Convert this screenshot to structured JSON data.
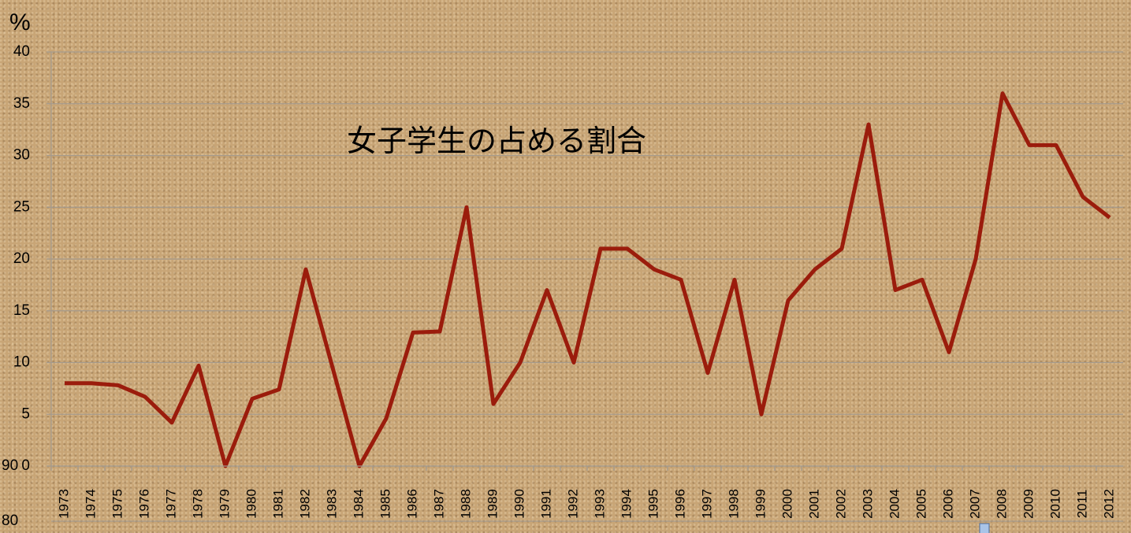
{
  "chart_data": [
    {
      "type": "line",
      "title": "女子学生の占める割合",
      "ylabel": "%",
      "categories": [
        "1973",
        "1974",
        "1975",
        "1976",
        "1977",
        "1978",
        "1979",
        "1980",
        "1981",
        "1982",
        "1983",
        "1984",
        "1985",
        "1986",
        "1987",
        "1988",
        "1989",
        "1990",
        "1991",
        "1992",
        "1993",
        "1994",
        "1995",
        "1996",
        "1997",
        "1998",
        "1999",
        "2000",
        "2001",
        "2002",
        "2003",
        "2004",
        "2005",
        "2006",
        "2007",
        "2008",
        "2009",
        "2010",
        "2011",
        "2012"
      ],
      "series": [
        {
          "name": "女子学生の占める割合",
          "color": "#9b1c0c",
          "values": [
            8,
            8,
            7.8,
            6.7,
            4.2,
            9.7,
            0,
            6.5,
            7.4,
            19,
            9.5,
            0,
            4.6,
            12.9,
            13,
            25,
            6,
            10,
            17,
            10,
            21,
            21,
            19,
            18,
            9,
            18,
            5,
            16,
            19,
            21,
            33,
            17,
            18,
            11,
            20,
            36,
            31,
            31,
            26,
            24
          ]
        }
      ],
      "ylim": [
        0,
        40
      ],
      "yticks": [
        0,
        5,
        10,
        15,
        20,
        25,
        30,
        35,
        40
      ],
      "grid": true
    },
    {
      "type": "bar",
      "yticks": [
        90,
        80
      ]
    }
  ]
}
